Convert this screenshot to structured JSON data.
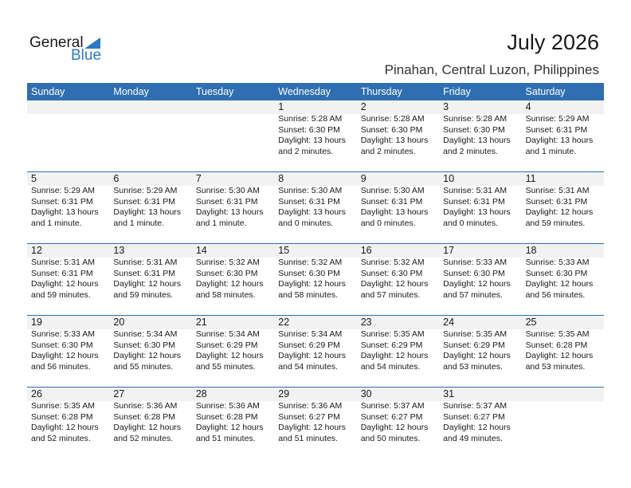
{
  "logo": {
    "text1": "General",
    "text2": "Blue"
  },
  "title": "July 2026",
  "location": "Pinahan, Central Luzon, Philippines",
  "weekdays": [
    "Sunday",
    "Monday",
    "Tuesday",
    "Wednesday",
    "Thursday",
    "Friday",
    "Saturday"
  ],
  "colors": {
    "header": "#2f6fb1",
    "band": "#f2f2f2"
  },
  "weeks": [
    [
      null,
      null,
      null,
      {
        "day": "1",
        "sunrise": "Sunrise: 5:28 AM",
        "sunset": "Sunset: 6:30 PM",
        "daylight1": "Daylight: 13 hours",
        "daylight2": "and 2 minutes."
      },
      {
        "day": "2",
        "sunrise": "Sunrise: 5:28 AM",
        "sunset": "Sunset: 6:30 PM",
        "daylight1": "Daylight: 13 hours",
        "daylight2": "and 2 minutes."
      },
      {
        "day": "3",
        "sunrise": "Sunrise: 5:28 AM",
        "sunset": "Sunset: 6:30 PM",
        "daylight1": "Daylight: 13 hours",
        "daylight2": "and 2 minutes."
      },
      {
        "day": "4",
        "sunrise": "Sunrise: 5:29 AM",
        "sunset": "Sunset: 6:31 PM",
        "daylight1": "Daylight: 13 hours",
        "daylight2": "and 1 minute."
      }
    ],
    [
      {
        "day": "5",
        "sunrise": "Sunrise: 5:29 AM",
        "sunset": "Sunset: 6:31 PM",
        "daylight1": "Daylight: 13 hours",
        "daylight2": "and 1 minute."
      },
      {
        "day": "6",
        "sunrise": "Sunrise: 5:29 AM",
        "sunset": "Sunset: 6:31 PM",
        "daylight1": "Daylight: 13 hours",
        "daylight2": "and 1 minute."
      },
      {
        "day": "7",
        "sunrise": "Sunrise: 5:30 AM",
        "sunset": "Sunset: 6:31 PM",
        "daylight1": "Daylight: 13 hours",
        "daylight2": "and 1 minute."
      },
      {
        "day": "8",
        "sunrise": "Sunrise: 5:30 AM",
        "sunset": "Sunset: 6:31 PM",
        "daylight1": "Daylight: 13 hours",
        "daylight2": "and 0 minutes."
      },
      {
        "day": "9",
        "sunrise": "Sunrise: 5:30 AM",
        "sunset": "Sunset: 6:31 PM",
        "daylight1": "Daylight: 13 hours",
        "daylight2": "and 0 minutes."
      },
      {
        "day": "10",
        "sunrise": "Sunrise: 5:31 AM",
        "sunset": "Sunset: 6:31 PM",
        "daylight1": "Daylight: 13 hours",
        "daylight2": "and 0 minutes."
      },
      {
        "day": "11",
        "sunrise": "Sunrise: 5:31 AM",
        "sunset": "Sunset: 6:31 PM",
        "daylight1": "Daylight: 12 hours",
        "daylight2": "and 59 minutes."
      }
    ],
    [
      {
        "day": "12",
        "sunrise": "Sunrise: 5:31 AM",
        "sunset": "Sunset: 6:31 PM",
        "daylight1": "Daylight: 12 hours",
        "daylight2": "and 59 minutes."
      },
      {
        "day": "13",
        "sunrise": "Sunrise: 5:31 AM",
        "sunset": "Sunset: 6:31 PM",
        "daylight1": "Daylight: 12 hours",
        "daylight2": "and 59 minutes."
      },
      {
        "day": "14",
        "sunrise": "Sunrise: 5:32 AM",
        "sunset": "Sunset: 6:30 PM",
        "daylight1": "Daylight: 12 hours",
        "daylight2": "and 58 minutes."
      },
      {
        "day": "15",
        "sunrise": "Sunrise: 5:32 AM",
        "sunset": "Sunset: 6:30 PM",
        "daylight1": "Daylight: 12 hours",
        "daylight2": "and 58 minutes."
      },
      {
        "day": "16",
        "sunrise": "Sunrise: 5:32 AM",
        "sunset": "Sunset: 6:30 PM",
        "daylight1": "Daylight: 12 hours",
        "daylight2": "and 57 minutes."
      },
      {
        "day": "17",
        "sunrise": "Sunrise: 5:33 AM",
        "sunset": "Sunset: 6:30 PM",
        "daylight1": "Daylight: 12 hours",
        "daylight2": "and 57 minutes."
      },
      {
        "day": "18",
        "sunrise": "Sunrise: 5:33 AM",
        "sunset": "Sunset: 6:30 PM",
        "daylight1": "Daylight: 12 hours",
        "daylight2": "and 56 minutes."
      }
    ],
    [
      {
        "day": "19",
        "sunrise": "Sunrise: 5:33 AM",
        "sunset": "Sunset: 6:30 PM",
        "daylight1": "Daylight: 12 hours",
        "daylight2": "and 56 minutes."
      },
      {
        "day": "20",
        "sunrise": "Sunrise: 5:34 AM",
        "sunset": "Sunset: 6:30 PM",
        "daylight1": "Daylight: 12 hours",
        "daylight2": "and 55 minutes."
      },
      {
        "day": "21",
        "sunrise": "Sunrise: 5:34 AM",
        "sunset": "Sunset: 6:29 PM",
        "daylight1": "Daylight: 12 hours",
        "daylight2": "and 55 minutes."
      },
      {
        "day": "22",
        "sunrise": "Sunrise: 5:34 AM",
        "sunset": "Sunset: 6:29 PM",
        "daylight1": "Daylight: 12 hours",
        "daylight2": "and 54 minutes."
      },
      {
        "day": "23",
        "sunrise": "Sunrise: 5:35 AM",
        "sunset": "Sunset: 6:29 PM",
        "daylight1": "Daylight: 12 hours",
        "daylight2": "and 54 minutes."
      },
      {
        "day": "24",
        "sunrise": "Sunrise: 5:35 AM",
        "sunset": "Sunset: 6:29 PM",
        "daylight1": "Daylight: 12 hours",
        "daylight2": "and 53 minutes."
      },
      {
        "day": "25",
        "sunrise": "Sunrise: 5:35 AM",
        "sunset": "Sunset: 6:28 PM",
        "daylight1": "Daylight: 12 hours",
        "daylight2": "and 53 minutes."
      }
    ],
    [
      {
        "day": "26",
        "sunrise": "Sunrise: 5:35 AM",
        "sunset": "Sunset: 6:28 PM",
        "daylight1": "Daylight: 12 hours",
        "daylight2": "and 52 minutes."
      },
      {
        "day": "27",
        "sunrise": "Sunrise: 5:36 AM",
        "sunset": "Sunset: 6:28 PM",
        "daylight1": "Daylight: 12 hours",
        "daylight2": "and 52 minutes."
      },
      {
        "day": "28",
        "sunrise": "Sunrise: 5:36 AM",
        "sunset": "Sunset: 6:28 PM",
        "daylight1": "Daylight: 12 hours",
        "daylight2": "and 51 minutes."
      },
      {
        "day": "29",
        "sunrise": "Sunrise: 5:36 AM",
        "sunset": "Sunset: 6:27 PM",
        "daylight1": "Daylight: 12 hours",
        "daylight2": "and 51 minutes."
      },
      {
        "day": "30",
        "sunrise": "Sunrise: 5:37 AM",
        "sunset": "Sunset: 6:27 PM",
        "daylight1": "Daylight: 12 hours",
        "daylight2": "and 50 minutes."
      },
      {
        "day": "31",
        "sunrise": "Sunrise: 5:37 AM",
        "sunset": "Sunset: 6:27 PM",
        "daylight1": "Daylight: 12 hours",
        "daylight2": "and 49 minutes."
      },
      null
    ]
  ]
}
